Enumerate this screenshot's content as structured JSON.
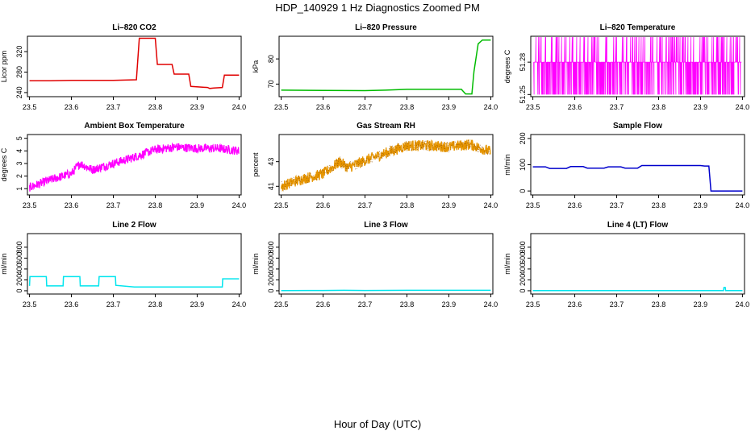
{
  "page_title": "HDP_140929  1 Hz Diagnostics Zoomed PM",
  "x_common_label": "Hour of Day (UTC)",
  "chart_data": [
    {
      "type": "line",
      "title": "Li–820 CO2",
      "ylabel": "Licor ppm",
      "xlim": [
        23.495,
        24.005
      ],
      "ylim": [
        232,
        350
      ],
      "x_ticks": [
        "23.5",
        "23.6",
        "23.7",
        "23.8",
        "23.9",
        "24.0"
      ],
      "y_ticks": [
        "240",
        "280",
        "320"
      ],
      "color": "#e00000",
      "series": [
        {
          "x": [
            23.5,
            23.55,
            23.6,
            23.65,
            23.7,
            23.755,
            23.762,
            23.8,
            23.805,
            23.84,
            23.845,
            23.88,
            23.885,
            23.925,
            23.93,
            23.94,
            23.96,
            23.965,
            24.0
          ],
          "y": [
            263,
            263,
            264,
            264,
            264,
            265,
            346,
            346,
            295,
            295,
            276,
            276,
            252,
            250,
            248,
            249,
            250,
            274,
            274
          ]
        }
      ]
    },
    {
      "type": "line",
      "title": "Li–820 Pressure",
      "ylabel": "kPa",
      "xlim": [
        23.495,
        24.005
      ],
      "ylim": [
        65,
        89
      ],
      "x_ticks": [
        "23.5",
        "23.6",
        "23.7",
        "23.8",
        "23.9",
        "24.0"
      ],
      "y_ticks": [
        "70",
        "80"
      ],
      "color": "#00bb00",
      "series": [
        {
          "x": [
            23.5,
            23.6,
            23.7,
            23.75,
            23.8,
            23.9,
            23.93,
            23.94,
            23.955,
            23.96,
            23.97,
            23.98,
            24.0
          ],
          "y": [
            67.6,
            67.5,
            67.4,
            67.6,
            67.9,
            67.9,
            67.9,
            66.1,
            66.1,
            75,
            86,
            87.5,
            87.5
          ]
        }
      ]
    },
    {
      "type": "line",
      "title": "Li–820 Temperature",
      "ylabel": "degrees C",
      "xlim": [
        23.495,
        24.005
      ],
      "ylim": [
        51.248,
        51.304
      ],
      "x_ticks": [
        "23.5",
        "23.6",
        "23.7",
        "23.8",
        "23.9",
        "24.0"
      ],
      "y_ticks": [
        "51.25",
        "51.28"
      ],
      "color": "#ff00ff",
      "series": [
        {
          "x": [
            23.5,
            23.6,
            23.7,
            23.8,
            23.9,
            24.0
          ],
          "y": [
            51.25,
            51.28,
            51.25,
            51.28,
            51.25,
            51.28
          ]
        }
      ]
    },
    {
      "type": "line",
      "title": "Ambient Box Temperature",
      "ylabel": "degrees C",
      "xlim": [
        23.495,
        24.005
      ],
      "ylim": [
        0.5,
        5.3
      ],
      "x_ticks": [
        "23.5",
        "23.6",
        "23.7",
        "23.8",
        "23.9",
        "24.0"
      ],
      "y_ticks": [
        "1",
        "2",
        "3",
        "4",
        "5"
      ],
      "color": "#ff00ff",
      "series": [
        {
          "x": [
            23.5,
            23.55,
            23.6,
            23.62,
            23.65,
            23.7,
            23.75,
            23.8,
            23.85,
            23.9,
            23.95,
            24.0
          ],
          "y": [
            1.1,
            1.7,
            2.2,
            3.0,
            2.5,
            3.0,
            3.5,
            4.1,
            4.3,
            4.2,
            4.2,
            4.0
          ]
        }
      ]
    },
    {
      "type": "line",
      "title": "Gas Stream RH",
      "ylabel": "percent",
      "xlim": [
        23.495,
        24.005
      ],
      "ylim": [
        40.3,
        45.2
      ],
      "x_ticks": [
        "23.5",
        "23.6",
        "23.7",
        "23.8",
        "23.9",
        "24.0"
      ],
      "y_ticks": [
        "41",
        "43"
      ],
      "color": "#e69500",
      "series": [
        {
          "x": [
            23.5,
            23.55,
            23.6,
            23.64,
            23.66,
            23.7,
            23.75,
            23.8,
            23.85,
            23.9,
            23.95,
            24.0
          ],
          "y": [
            41.0,
            41.6,
            42.0,
            43.0,
            42.5,
            43.1,
            43.7,
            44.3,
            44.3,
            44.2,
            44.4,
            43.8
          ]
        }
      ]
    },
    {
      "type": "line",
      "title": "Sample Flow",
      "ylabel": "ml/min",
      "xlim": [
        23.495,
        24.005
      ],
      "ylim": [
        -15,
        215
      ],
      "x_ticks": [
        "23.5",
        "23.6",
        "23.7",
        "23.8",
        "23.9",
        "24.0"
      ],
      "y_ticks": [
        "0",
        "100",
        "200"
      ],
      "color": "#0000cc",
      "series": [
        {
          "x": [
            23.5,
            23.53,
            23.54,
            23.58,
            23.59,
            23.62,
            23.63,
            23.67,
            23.68,
            23.71,
            23.72,
            23.75,
            23.76,
            23.9,
            23.91,
            23.92,
            23.925,
            24.0
          ],
          "y": [
            92,
            92,
            86,
            86,
            93,
            93,
            87,
            87,
            92,
            92,
            87,
            87,
            97,
            97,
            95,
            95,
            0,
            0
          ]
        }
      ]
    },
    {
      "type": "line",
      "title": "Line 2 Flow",
      "ylabel": "ml/min",
      "xlim": [
        23.495,
        24.005
      ],
      "ylim": [
        -60,
        1050
      ],
      "x_ticks": [
        "23.5",
        "23.6",
        "23.7",
        "23.8",
        "23.9",
        "24.0"
      ],
      "y_ticks": [
        "0",
        "200",
        "400",
        "600",
        "800"
      ],
      "color": "#00e5ee",
      "series": [
        {
          "x": [
            23.5,
            23.501,
            23.54,
            23.541,
            23.58,
            23.581,
            23.62,
            23.621,
            23.665,
            23.666,
            23.705,
            23.706,
            23.75,
            23.96,
            23.961,
            24.0
          ],
          "y": [
            90,
            260,
            260,
            90,
            90,
            260,
            260,
            90,
            90,
            260,
            260,
            100,
            70,
            70,
            220,
            220
          ]
        }
      ]
    },
    {
      "type": "line",
      "title": "Line 3 Flow",
      "ylabel": "ml/min",
      "xlim": [
        23.495,
        24.005
      ],
      "ylim": [
        -60,
        1050
      ],
      "x_ticks": [
        "23.5",
        "23.6",
        "23.7",
        "23.8",
        "23.9",
        "24.0"
      ],
      "y_ticks": [
        "0",
        "200",
        "400",
        "600",
        "800"
      ],
      "color": "#00e5ee",
      "series": [
        {
          "x": [
            23.5,
            23.6,
            23.65,
            23.7,
            23.8,
            23.9,
            24.0
          ],
          "y": [
            3,
            5,
            8,
            5,
            8,
            8,
            8
          ]
        }
      ]
    },
    {
      "type": "line",
      "title": "Line 4 (LT) Flow",
      "ylabel": "ml/min",
      "xlim": [
        23.495,
        24.005
      ],
      "ylim": [
        -60,
        1050
      ],
      "x_ticks": [
        "23.5",
        "23.6",
        "23.7",
        "23.8",
        "23.9",
        "24.0"
      ],
      "y_ticks": [
        "0",
        "200",
        "400",
        "600",
        "800"
      ],
      "color": "#00e5ee",
      "series": [
        {
          "x": [
            23.5,
            23.6,
            23.7,
            23.8,
            23.9,
            23.955,
            23.956,
            23.959,
            23.96,
            24.0
          ],
          "y": [
            2,
            2,
            2,
            2,
            2,
            2,
            60,
            60,
            2,
            2
          ]
        }
      ]
    }
  ]
}
